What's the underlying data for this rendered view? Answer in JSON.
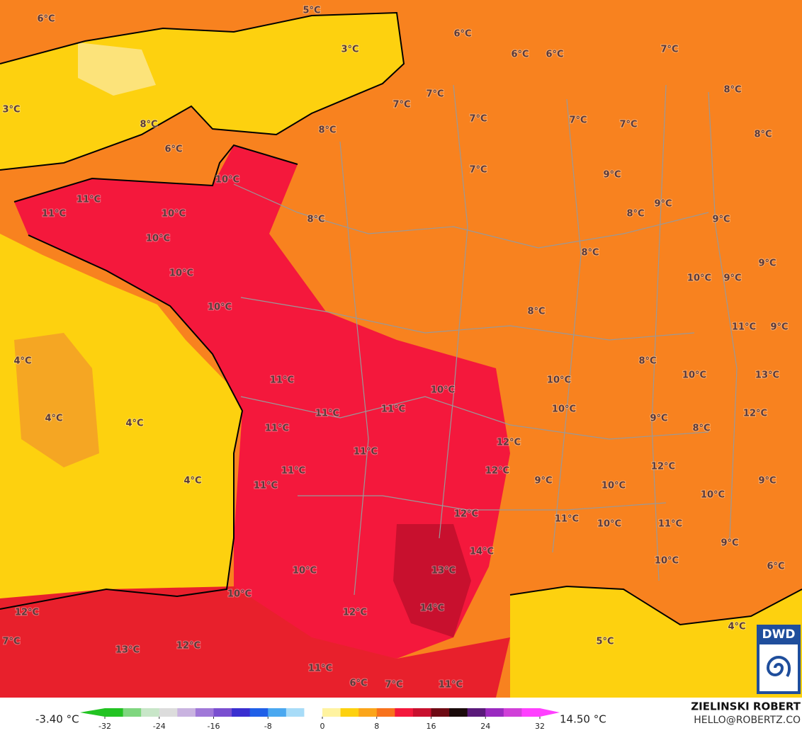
{
  "map": {
    "labels": [
      "5°C",
      "6°C",
      "3°C",
      "6°C",
      "6°C",
      "6°C",
      "7°C",
      "3°C",
      "7°C",
      "7°C",
      "8°C",
      "8°C",
      "7°C",
      "7°C",
      "7°C",
      "8°C",
      "6°C",
      "8°C",
      "10°C",
      "7°C",
      "9°C",
      "11°C",
      "11°C",
      "10°C",
      "9°C",
      "8°C",
      "8°C",
      "9°C",
      "10°C",
      "8°C",
      "9°C",
      "10°C",
      "10°C",
      "9°C",
      "10°C",
      "8°C",
      "11°C",
      "9°C",
      "4°C",
      "8°C",
      "11°C",
      "10°C",
      "13°C",
      "10°C",
      "10°C",
      "11°C",
      "10°C",
      "11°C",
      "12°C",
      "4°C",
      "9°C",
      "4°C",
      "11°C",
      "8°C",
      "12°C",
      "11°C",
      "12°C",
      "12°C",
      "11°C",
      "4°C",
      "9°C",
      "9°C",
      "10°C",
      "11°C",
      "10°C",
      "12°C",
      "11°C",
      "10°C",
      "11°C",
      "9°C",
      "14°C",
      "10°C",
      "6°C",
      "10°C",
      "13°C",
      "10°C",
      "14°C",
      "12°C",
      "12°C",
      "4°C",
      "7°C",
      "5°C",
      "12°C",
      "13°C",
      "11°C",
      "6°C",
      "7°C",
      "11°C"
    ]
  },
  "colorbar": {
    "lim": [
      -32,
      32
    ],
    "ticks": [
      -32,
      -24,
      -16,
      -8,
      0,
      8,
      16,
      24,
      32
    ],
    "min_label": "-3.40 °C",
    "max_label": "14.50 °C"
  },
  "credit": {
    "name": "ZIELINSKI ROBERT",
    "contact": "HELLO@ROBERTZ.CO",
    "logo": "DWD"
  }
}
